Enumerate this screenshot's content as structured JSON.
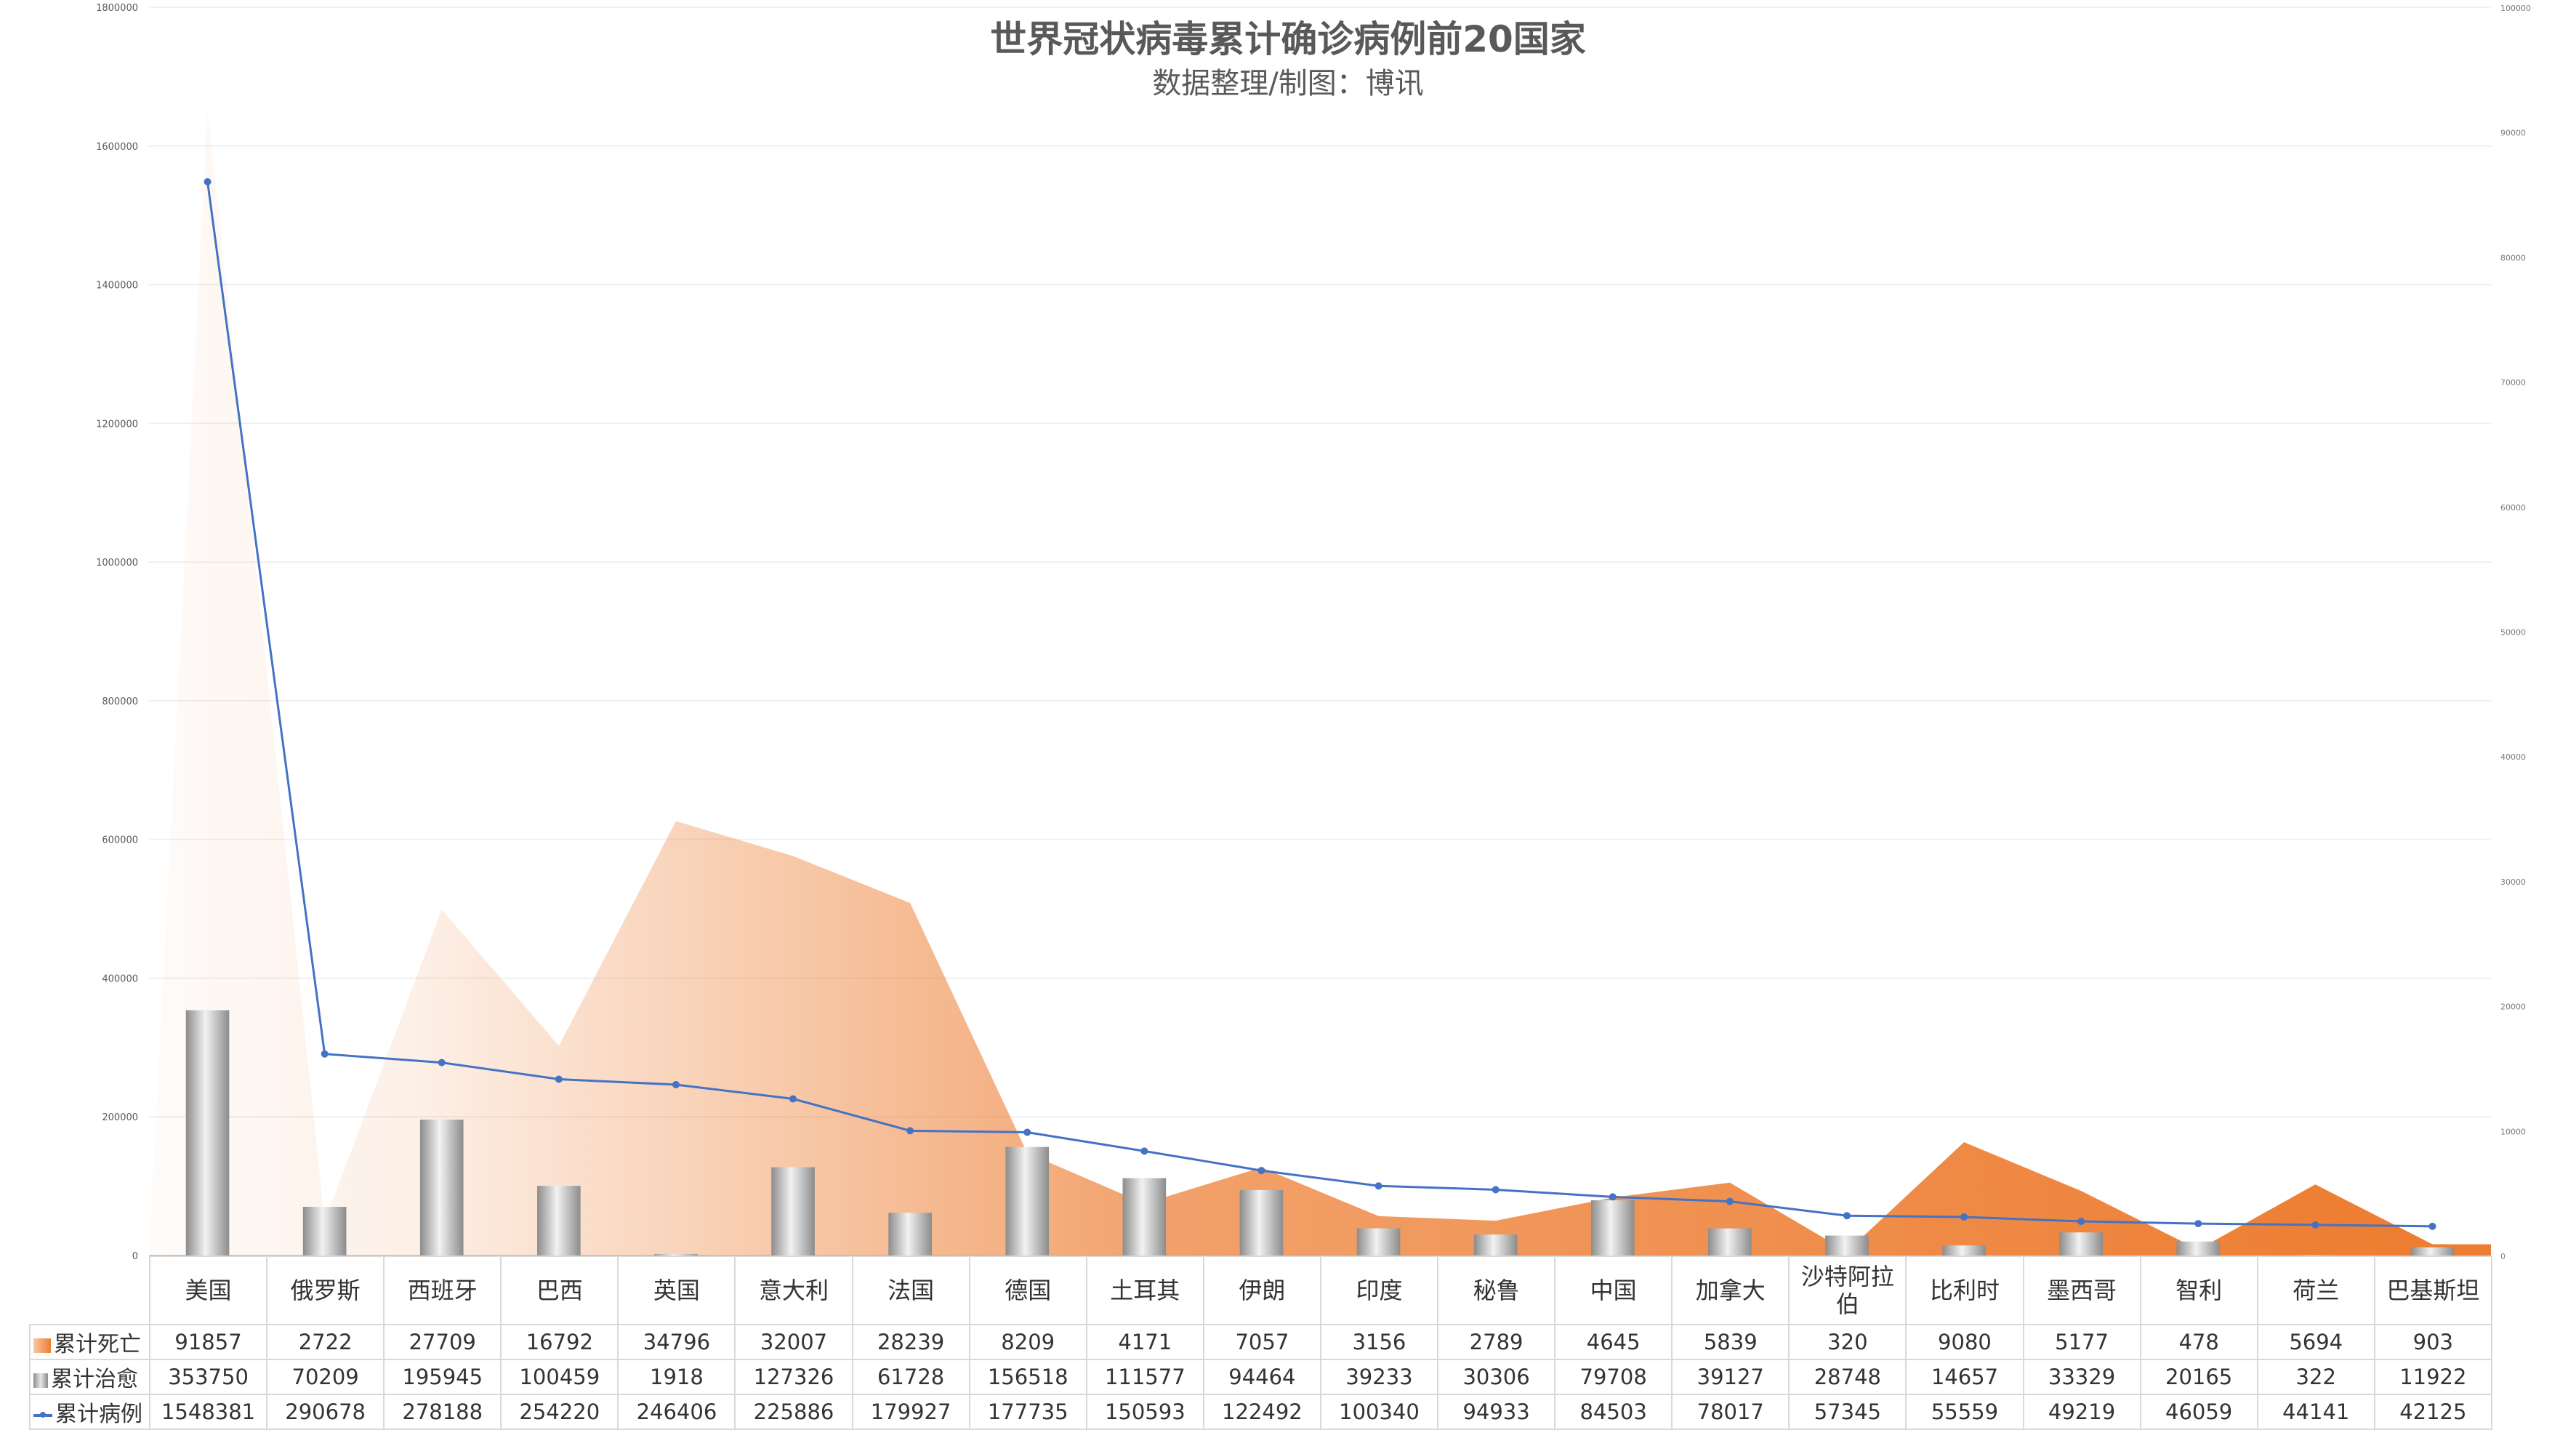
{
  "chart_data": {
    "type": "bar",
    "title": "世界冠状病毒累计确诊病例前20国家",
    "subtitle": "数据整理/制图：博讯",
    "categories": [
      "美国",
      "俄罗斯",
      "西班牙",
      "巴西",
      "英国",
      "意大利",
      "法国",
      "德国",
      "土耳其",
      "伊朗",
      "印度",
      "秘鲁",
      "中国",
      "加拿大",
      "沙特阿拉伯",
      "比利时",
      "墨西哥",
      "智利",
      "荷兰",
      "巴基斯坦"
    ],
    "series": [
      {
        "name": "累计死亡",
        "kind": "area",
        "axis": "right",
        "color": "#ed7d31",
        "values": [
          91857,
          2722,
          27709,
          16792,
          34796,
          32007,
          28239,
          8209,
          4171,
          7057,
          3156,
          2789,
          4645,
          5839,
          320,
          9080,
          5177,
          478,
          5694,
          903
        ]
      },
      {
        "name": "累计治愈",
        "kind": "bar",
        "axis": "left",
        "color": "#a6a6a6",
        "values": [
          353750,
          70209,
          195945,
          100459,
          1918,
          127326,
          61728,
          156518,
          111577,
          94464,
          39233,
          30306,
          79708,
          39127,
          28748,
          14657,
          33329,
          20165,
          322,
          11922
        ]
      },
      {
        "name": "累计病例",
        "kind": "line",
        "axis": "left",
        "color": "#4472c4",
        "values": [
          1548381,
          290678,
          278188,
          254220,
          246406,
          225886,
          179927,
          177735,
          150593,
          122492,
          100340,
          94933,
          84503,
          78017,
          57345,
          55559,
          49219,
          46059,
          44141,
          42125
        ]
      }
    ],
    "y_left": {
      "ylim": [
        0,
        1800000
      ],
      "ticks": [
        "0",
        "200000",
        "400000",
        "600000",
        "800000",
        "1000000",
        "1200000",
        "1400000",
        "1600000",
        "1800000"
      ]
    },
    "y_right": {
      "ylim": [
        0,
        100000
      ],
      "ticks": [
        "0",
        "10000",
        "20000",
        "30000",
        "40000",
        "50000",
        "60000",
        "70000",
        "80000",
        "90000",
        "100000"
      ]
    },
    "grid": true,
    "legend": "data-table-left"
  }
}
